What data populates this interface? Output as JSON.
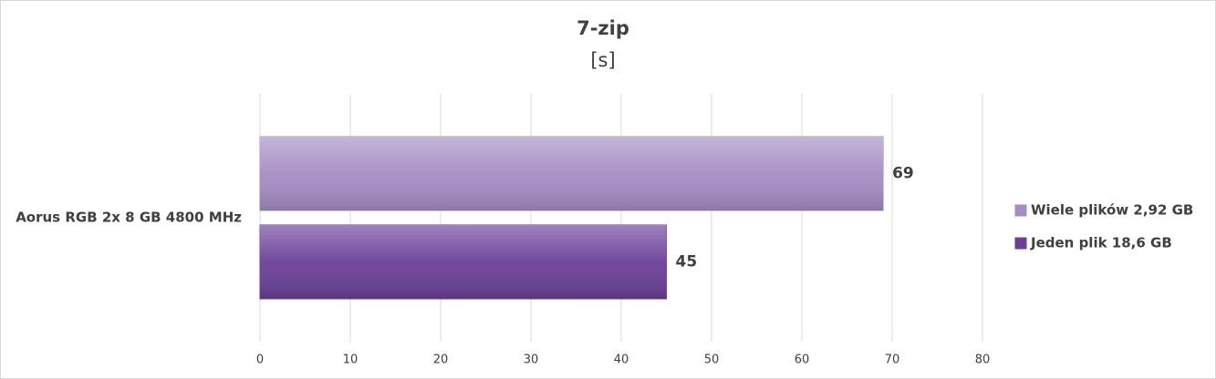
{
  "chart_data": {
    "type": "bar",
    "orientation": "horizontal",
    "title": "7-zip",
    "subtitle": "[s]",
    "categories": [
      "Aorus RGB 2x 8 GB 4800 MHz"
    ],
    "series": [
      {
        "name": "Wiele plików 2,92 GB",
        "color": "#a48dc4",
        "values": [
          69
        ]
      },
      {
        "name": "Jeden plik 18,6 GB",
        "color": "#6b3f98",
        "values": [
          45
        ]
      }
    ],
    "xlim": [
      0,
      80
    ],
    "xticks": [
      0,
      10,
      20,
      30,
      40,
      50,
      60,
      70,
      80
    ],
    "grid": true,
    "legend": "right"
  }
}
